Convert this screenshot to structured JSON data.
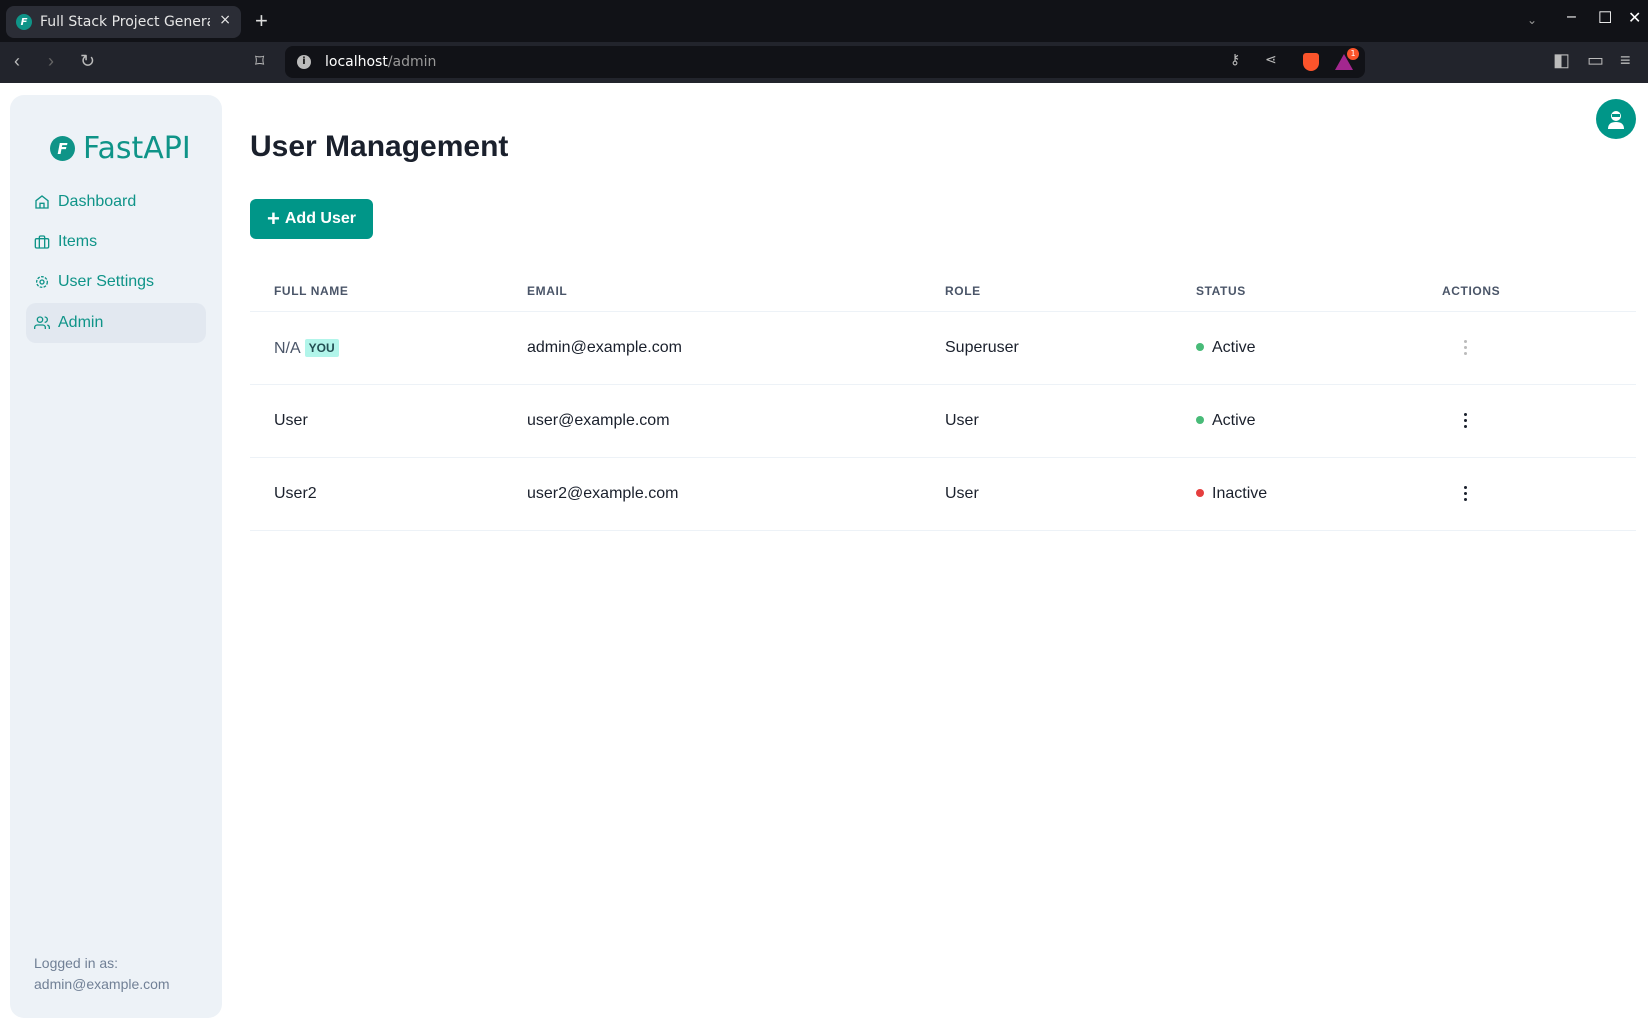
{
  "browser": {
    "tab_title": "Full Stack Project Generator",
    "url_host": "localhost",
    "url_path": "/admin",
    "new_tab": "+",
    "close_tab": "×",
    "notification_count": "1"
  },
  "sidebar": {
    "logo": "FastAPI",
    "items": [
      {
        "label": "Dashboard",
        "icon": "home-icon"
      },
      {
        "label": "Items",
        "icon": "briefcase-icon"
      },
      {
        "label": "User Settings",
        "icon": "gear-icon"
      },
      {
        "label": "Admin",
        "icon": "users-icon",
        "active": true
      }
    ],
    "logged_in_label": "Logged in as:",
    "logged_in_email": "admin@example.com"
  },
  "main": {
    "title": "User Management",
    "add_button": "Add User",
    "columns": [
      "FULL NAME",
      "EMAIL",
      "ROLE",
      "STATUS",
      "ACTIONS"
    ],
    "rows": [
      {
        "name": "N/A",
        "badge": "YOU",
        "email": "admin@example.com",
        "role": "Superuser",
        "status": "Active",
        "actions_disabled": true
      },
      {
        "name": "User",
        "email": "user@example.com",
        "role": "User",
        "status": "Active"
      },
      {
        "name": "User2",
        "email": "user2@example.com",
        "role": "User",
        "status": "Inactive"
      }
    ]
  },
  "colors": {
    "accent": "#009688",
    "active": "#48bb78",
    "inactive": "#e53e3e",
    "badge_bg": "#b2f5ea"
  }
}
